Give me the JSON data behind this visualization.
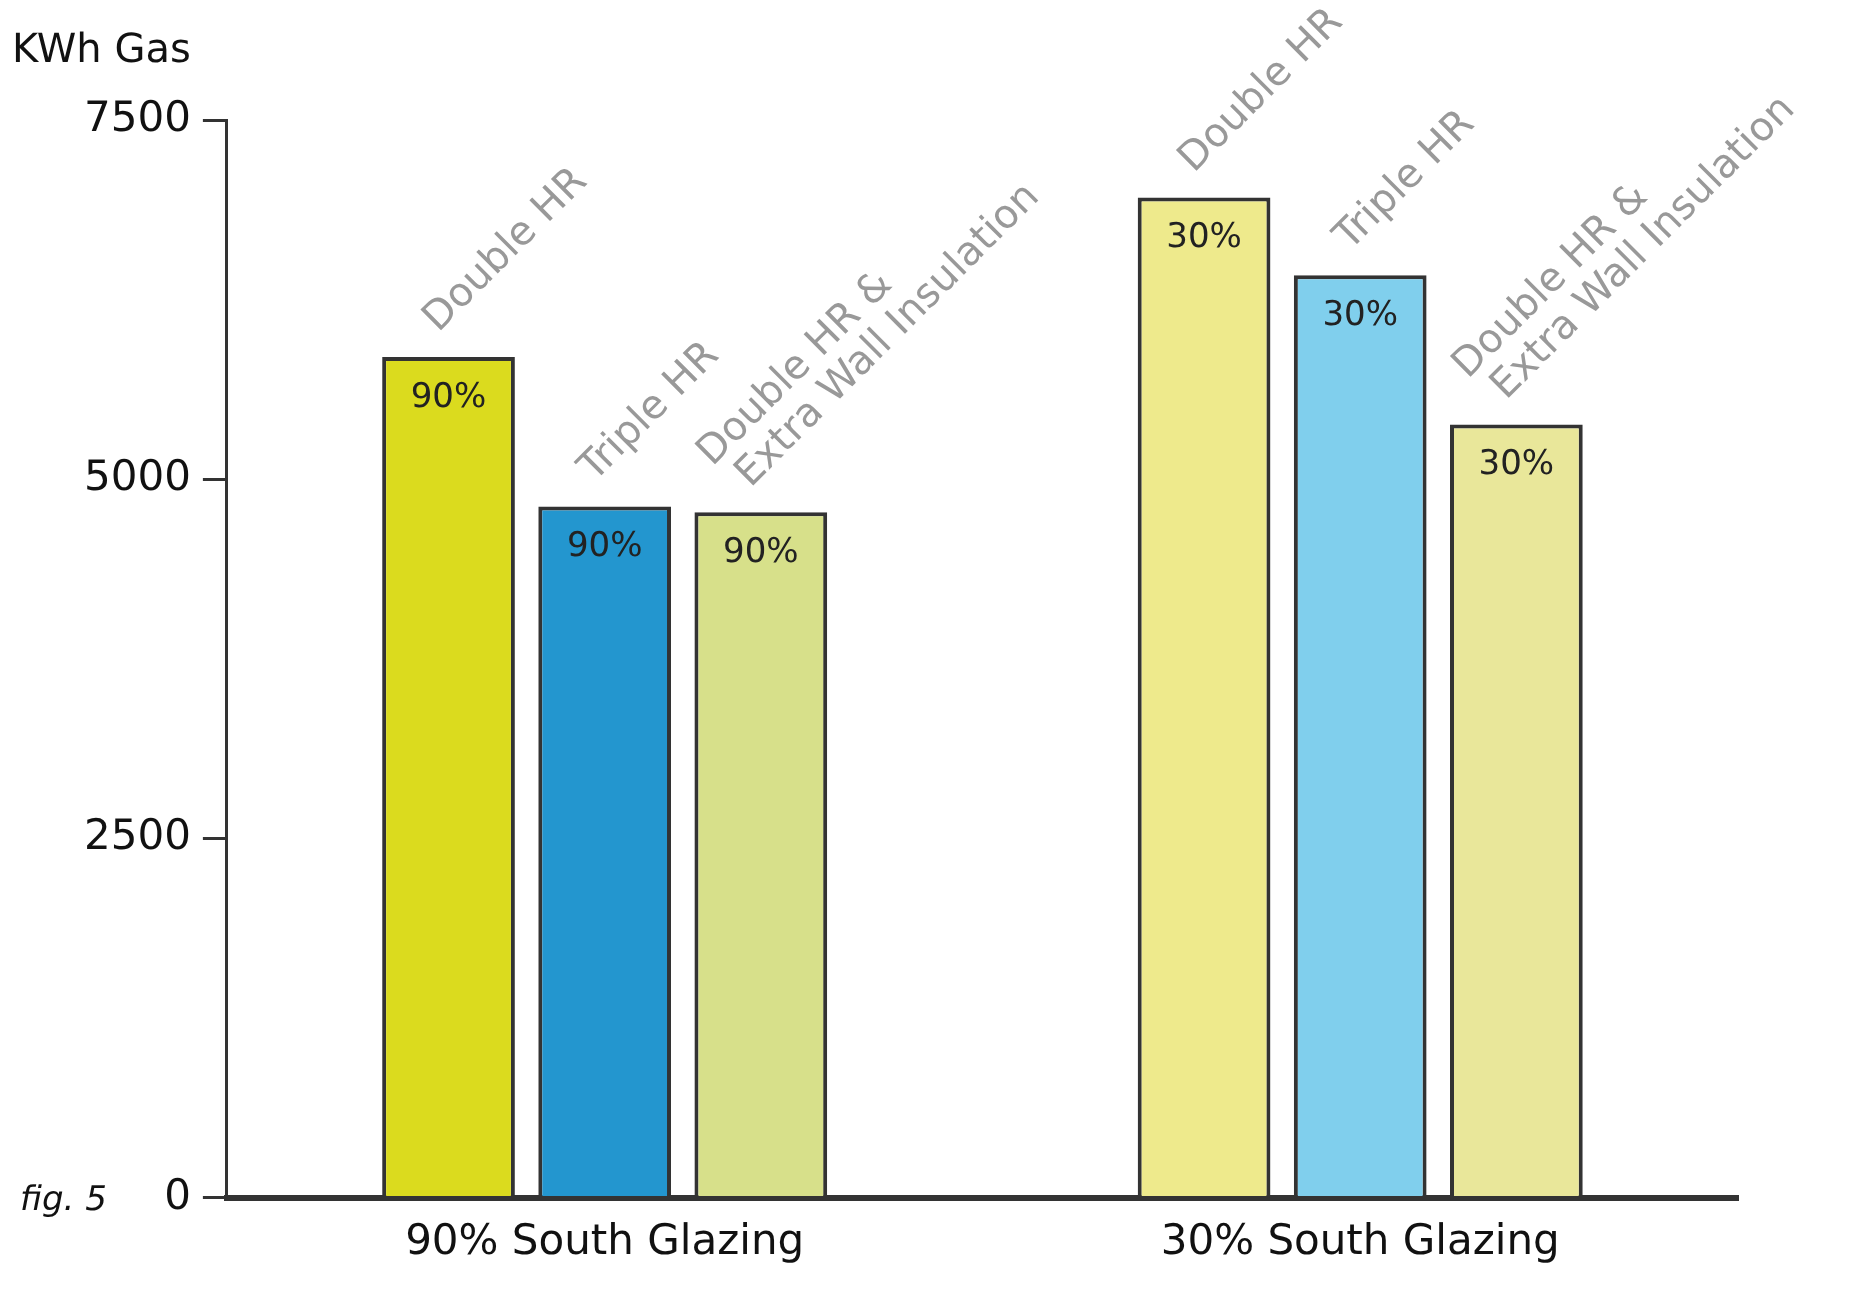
{
  "chart_data": {
    "type": "bar",
    "ylabel": "KWh Gas",
    "categories": [
      "90% South Glazing",
      "30% South Glazing"
    ],
    "series": [
      {
        "name": "Double HR",
        "colors": [
          "#dbdb1e",
          "#eeea8c"
        ],
        "values": [
          5850,
          6960
        ]
      },
      {
        "name": "Triple HR",
        "colors": [
          "#2396cf",
          "#80cfed"
        ],
        "values": [
          4810,
          6420
        ]
      },
      {
        "name": "Double HR &\nExtra Wall Insulation",
        "colors": [
          "#d7e08a",
          "#e9e79a"
        ],
        "values": [
          4770,
          5380
        ]
      }
    ],
    "ylim": [
      0,
      7500
    ],
    "yticks": [
      0,
      2500,
      5000,
      7500
    ],
    "grid": false,
    "legend": false,
    "annotations": [
      "fig. 5",
      "90%",
      "90%",
      "90%",
      "30%",
      "30%",
      "30%"
    ]
  }
}
